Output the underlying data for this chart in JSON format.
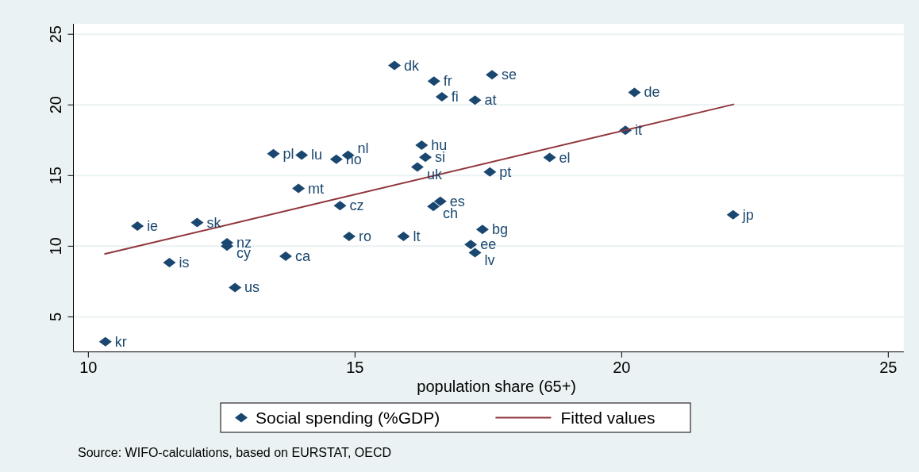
{
  "chart_data": {
    "type": "scatter",
    "xlabel": "population share (65+)",
    "xlim": [
      9.72,
      25.29
    ],
    "xticks": [
      10,
      15,
      20,
      25
    ],
    "ylim": [
      2.52,
      25.74
    ],
    "yticks": [
      5,
      10,
      15,
      20,
      25
    ],
    "grid": "y",
    "legend": "bottom",
    "marker": "diamond",
    "series": [
      {
        "name": "Social spending (%GDP)",
        "color": "#1a476f",
        "x": [
          15.74,
          16.48,
          16.63,
          17.25,
          16.25,
          16.32,
          16.17,
          13.47,
          14.0,
          14.65,
          14.87,
          13.94,
          14.72,
          16.6,
          16.47,
          10.92,
          12.04,
          12.6,
          12.6,
          14.89,
          15.91,
          17.17,
          17.25,
          17.39,
          13.7,
          11.52,
          12.75,
          10.32,
          17.57,
          20.24,
          20.07,
          18.65,
          17.53,
          22.09
        ],
        "values": [
          22.79,
          21.69,
          20.57,
          20.34,
          17.15,
          16.29,
          15.6,
          16.54,
          16.45,
          16.16,
          16.43,
          14.09,
          12.87,
          13.18,
          12.81,
          11.42,
          11.67,
          10.24,
          10.01,
          10.7,
          10.7,
          10.12,
          9.54,
          11.18,
          9.29,
          8.84,
          7.08,
          3.24,
          22.13,
          20.89,
          18.2,
          16.28,
          15.25,
          12.22
        ]
      },
      {
        "name": "Fitted values",
        "type": "line",
        "color": "#90353b",
        "marker": "none",
        "line_style": "solid",
        "x": [
          10.3,
          22.11
        ],
        "values": [
          9.44,
          20.05
        ]
      }
    ],
    "annotations": [
      {
        "text": "dk",
        "x": 15.74,
        "y": 22.79
      },
      {
        "text": "fr",
        "x": 16.48,
        "y": 21.69
      },
      {
        "text": "fi",
        "x": 16.63,
        "y": 20.57
      },
      {
        "text": "at",
        "x": 17.25,
        "y": 20.34
      },
      {
        "text": "hu",
        "x": 16.25,
        "y": 17.15
      },
      {
        "text": "si",
        "x": 16.32,
        "y": 16.29
      },
      {
        "text": "uk",
        "x": 16.17,
        "y": 15.6
      },
      {
        "text": "pl",
        "x": 13.47,
        "y": 16.54
      },
      {
        "text": "lu",
        "x": 14.0,
        "y": 16.45
      },
      {
        "text": "no",
        "x": 14.65,
        "y": 16.16
      },
      {
        "text": "nl",
        "x": 14.87,
        "y": 16.43
      },
      {
        "text": "mt",
        "x": 13.94,
        "y": 14.09
      },
      {
        "text": "cz",
        "x": 14.72,
        "y": 12.87
      },
      {
        "text": "es",
        "x": 16.6,
        "y": 13.18
      },
      {
        "text": "ch",
        "x": 16.47,
        "y": 12.81
      },
      {
        "text": "ie",
        "x": 10.92,
        "y": 11.42
      },
      {
        "text": "sk",
        "x": 12.04,
        "y": 11.67
      },
      {
        "text": "nz",
        "x": 12.6,
        "y": 10.24
      },
      {
        "text": "cy",
        "x": 12.6,
        "y": 10.01
      },
      {
        "text": "ro",
        "x": 14.89,
        "y": 10.7
      },
      {
        "text": "lt",
        "x": 15.91,
        "y": 10.7
      },
      {
        "text": "ee",
        "x": 17.17,
        "y": 10.12
      },
      {
        "text": "lv",
        "x": 17.25,
        "y": 9.54
      },
      {
        "text": "bg",
        "x": 17.39,
        "y": 11.18
      },
      {
        "text": "ca",
        "x": 13.7,
        "y": 9.29
      },
      {
        "text": "is",
        "x": 11.52,
        "y": 8.84
      },
      {
        "text": "us",
        "x": 12.75,
        "y": 7.08
      },
      {
        "text": "kr",
        "x": 10.32,
        "y": 3.24
      },
      {
        "text": "se",
        "x": 17.57,
        "y": 22.13
      },
      {
        "text": "de",
        "x": 20.24,
        "y": 20.89
      },
      {
        "text": "it",
        "x": 20.07,
        "y": 18.2
      },
      {
        "text": "el",
        "x": 18.65,
        "y": 16.28
      },
      {
        "text": "pt",
        "x": 17.53,
        "y": 15.25
      },
      {
        "text": "jp",
        "x": 22.09,
        "y": 12.22
      },
      "Source: WIFO-calculations, based on EURSTAT, OECD"
    ]
  }
}
